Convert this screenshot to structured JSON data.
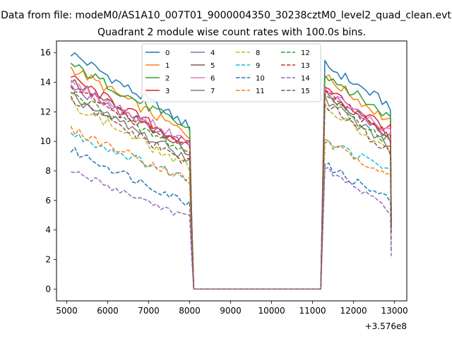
{
  "suptitle": "Data from file: modeM0/AS1A10_007T01_9000004350_30238cztM0_level2_quad_clean.evt",
  "chart_data": {
    "type": "line",
    "title": "Quadrant 2 module wise count rates with 100.0s bins.",
    "xlabel": "",
    "ylabel": "",
    "x_offset_label": "+3.576e8",
    "xlim": [
      4750,
      13300
    ],
    "ylim": [
      -0.8,
      16.8
    ],
    "xticks": [
      5000,
      6000,
      7000,
      8000,
      9000,
      10000,
      11000,
      12000,
      13000
    ],
    "yticks": [
      0,
      2,
      4,
      6,
      8,
      10,
      12,
      14,
      16
    ],
    "grid": false,
    "legend": {
      "placement": "top-center",
      "columns": 4
    },
    "segments": [
      {
        "start": 5100,
        "end": 8000,
        "step": 100
      },
      {
        "gap": [
          8100,
          11200
        ],
        "value": 0
      },
      {
        "start": 11300,
        "end": 12900,
        "step": 100
      }
    ],
    "series": [
      {
        "name": "0",
        "color": "#1f77b4",
        "dash": false,
        "seg1_start": 16.0,
        "seg1_end": 11.0,
        "seg2_start": 15.2,
        "seg2_end": 12.4,
        "noise": 0.35
      },
      {
        "name": "1",
        "color": "#ff7f0e",
        "dash": false,
        "seg1_start": 15.0,
        "seg1_end": 10.4,
        "seg2_start": 14.4,
        "seg2_end": 11.3,
        "noise": 0.35
      },
      {
        "name": "2",
        "color": "#2ca02c",
        "dash": false,
        "seg1_start": 15.2,
        "seg1_end": 10.8,
        "seg2_start": 14.6,
        "seg2_end": 11.6,
        "noise": 0.35
      },
      {
        "name": "3",
        "color": "#d62728",
        "dash": false,
        "seg1_start": 14.3,
        "seg1_end": 9.7,
        "seg2_start": 13.6,
        "seg2_end": 10.8,
        "noise": 0.35
      },
      {
        "name": "4",
        "color": "#9467bd",
        "dash": false,
        "seg1_start": 13.7,
        "seg1_end": 9.6,
        "seg2_start": 13.5,
        "seg2_end": 10.4,
        "noise": 0.35
      },
      {
        "name": "5",
        "color": "#8c564b",
        "dash": false,
        "seg1_start": 14.1,
        "seg1_end": 9.3,
        "seg2_start": 13.3,
        "seg2_end": 10.2,
        "noise": 0.35
      },
      {
        "name": "6",
        "color": "#e377c2",
        "dash": false,
        "seg1_start": 13.9,
        "seg1_end": 9.9,
        "seg2_start": 13.4,
        "seg2_end": 10.6,
        "noise": 0.35
      },
      {
        "name": "7",
        "color": "#7f7f7f",
        "dash": false,
        "seg1_start": 13.0,
        "seg1_end": 8.8,
        "seg2_start": 12.8,
        "seg2_end": 9.7,
        "noise": 0.35
      },
      {
        "name": "8",
        "color": "#bcbd22",
        "dash": true,
        "seg1_start": 12.6,
        "seg1_end": 8.2,
        "seg2_start": 12.4,
        "seg2_end": 9.2,
        "noise": 0.35
      },
      {
        "name": "9",
        "color": "#17becf",
        "dash": true,
        "seg1_start": 10.5,
        "seg1_end": 7.4,
        "seg2_start": 10.1,
        "seg2_end": 8.0,
        "noise": 0.3
      },
      {
        "name": "10",
        "color": "#1f77b4",
        "dash": true,
        "seg1_start": 9.4,
        "seg1_end": 5.8,
        "seg2_start": 8.4,
        "seg2_end": 6.0,
        "noise": 0.3
      },
      {
        "name": "11",
        "color": "#ff7f0e",
        "dash": true,
        "seg1_start": 10.8,
        "seg1_end": 7.4,
        "seg2_start": 9.9,
        "seg2_end": 7.8,
        "noise": 0.3
      },
      {
        "name": "12",
        "color": "#2ca02c",
        "dash": true,
        "seg1_start": 13.2,
        "seg1_end": 9.2,
        "seg2_start": 13.0,
        "seg2_end": 9.9,
        "noise": 0.35
      },
      {
        "name": "13",
        "color": "#d62728",
        "dash": true,
        "seg1_start": 13.6,
        "seg1_end": 9.5,
        "seg2_start": 13.4,
        "seg2_end": 10.3,
        "noise": 0.35
      },
      {
        "name": "14",
        "color": "#9467bd",
        "dash": true,
        "seg1_start": 8.0,
        "seg1_end": 4.8,
        "seg2_start": 8.2,
        "seg2_end": 5.3,
        "noise": 0.25
      },
      {
        "name": "15",
        "color": "#8c564b",
        "dash": true,
        "seg1_start": 12.8,
        "seg1_end": 8.5,
        "seg2_start": 12.6,
        "seg2_end": 9.2,
        "noise": 0.35
      }
    ]
  }
}
